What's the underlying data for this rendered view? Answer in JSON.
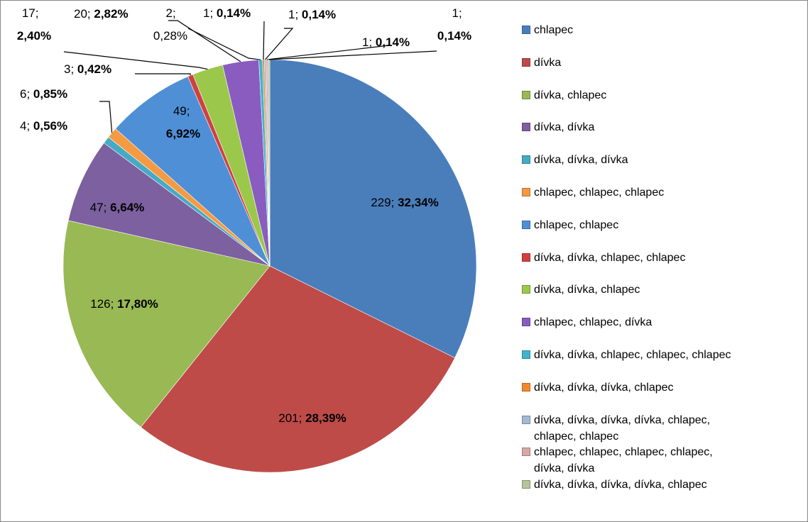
{
  "chart_data": {
    "type": "pie",
    "categories": [
      "chlapec",
      "dívka",
      "dívka, chlapec",
      "dívka, dívka",
      "dívka, dívka, dívka",
      "chlapec, chlapec, chlapec",
      "chlapec, chlapec",
      "dívka, dívka, chlapec, chlapec",
      "dívka, dívka, chlapec",
      "chlapec, chlapec, dívka",
      "dívka, dívka, chlapec, chlapec, chlapec",
      "dívka, dívka, dívka, chlapec",
      "dívka, dívka, dívka, dívka, chlapec, chlapec, chlapec",
      "chlapec, chlapec, chlapec, chlapec, dívka, dívka",
      "dívka, dívka, dívka, dívka, chlapec"
    ],
    "values": [
      229,
      201,
      126,
      47,
      4,
      6,
      49,
      3,
      17,
      20,
      2,
      1,
      1,
      1,
      1
    ],
    "label_separator": "; ",
    "percent_labels": [
      "32,34%",
      "28,39%",
      "17,80%",
      "6,64%",
      "0,56%",
      "0,85%",
      "6,92%",
      "0,42%",
      "2,40%",
      "2,82%",
      "0,28%",
      "0,14%",
      "0,14%",
      "0,14%",
      "0,14%"
    ],
    "colors": [
      "#4a7ebb",
      "#be4b48",
      "#98b954",
      "#7d60a0",
      "#46aac5",
      "#f59a42",
      "#4f8fd6",
      "#d04040",
      "#9bc84a",
      "#8a5cc0",
      "#3fb5cc",
      "#f08a2a",
      "#a5b8d4",
      "#d8a8a6",
      "#b5c49c"
    ],
    "legend": "right"
  }
}
